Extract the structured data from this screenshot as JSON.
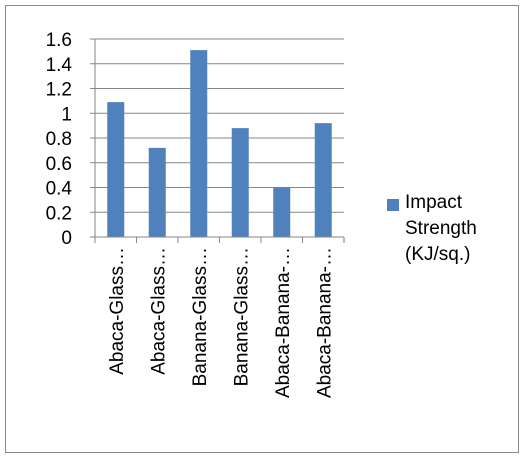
{
  "chart_data": {
    "type": "bar",
    "categories": [
      "Abaca-Glass…",
      "Abaca-Glass…",
      "Banana-Glass…",
      "Banana-Glass…",
      "Abaca-Banana-…",
      "Abaca-Banana-…"
    ],
    "series": [
      {
        "name": "Impact Strength (KJ/sq.)",
        "values": [
          1.09,
          0.72,
          1.51,
          0.88,
          0.4,
          0.92
        ]
      }
    ],
    "y_ticks": [
      "0",
      "0.2",
      "0.4",
      "0.6",
      "0.8",
      "1",
      "1.2",
      "1.4",
      "1.6"
    ],
    "ylim": [
      0,
      1.6
    ],
    "grid": true,
    "legend_position": "right",
    "bar_color": "#4f81bd",
    "gridline_color": "#868686"
  },
  "legend": {
    "line1": "Impact",
    "line2": "Strength",
    "line3": "(KJ/sq.)"
  }
}
